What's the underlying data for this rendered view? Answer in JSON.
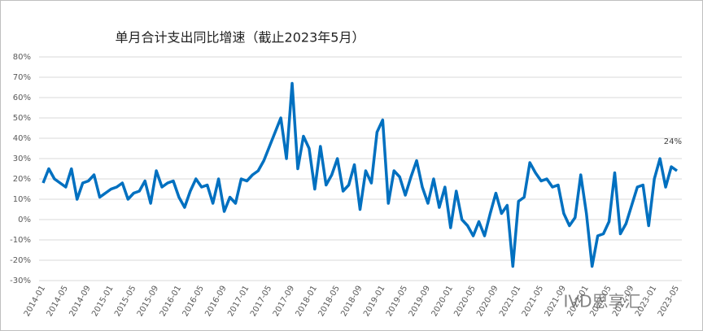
{
  "chart_data": {
    "type": "line",
    "title": "单月合计支出同比增速（截止2023年5月）",
    "watermark": "IVD思享汇",
    "categories": [
      "2014-01",
      null,
      null,
      null,
      "2014-05",
      null,
      null,
      null,
      "2014-09",
      null,
      null,
      null,
      "2015-01",
      null,
      null,
      null,
      "2015-05",
      null,
      null,
      null,
      "2015-09",
      null,
      null,
      null,
      "2016-01",
      null,
      null,
      null,
      "2016-05",
      null,
      null,
      null,
      "2016-09",
      null,
      null,
      null,
      "2017-01",
      null,
      null,
      null,
      "2017-05",
      null,
      null,
      null,
      "2017-09",
      null,
      null,
      null,
      "2018-01",
      null,
      null,
      null,
      "2018-05",
      null,
      null,
      null,
      "2018-09",
      null,
      null,
      null,
      "2019-01",
      null,
      null,
      null,
      "2019-05",
      null,
      null,
      null,
      "2019-09",
      null,
      null,
      null,
      "2020-01",
      null,
      null,
      null,
      "2020-05",
      null,
      null,
      null,
      "2020-09",
      null,
      null,
      null,
      "2021-01",
      null,
      null,
      null,
      "2021-05",
      null,
      null,
      null,
      "2021-09",
      null,
      null,
      null,
      "2022-01",
      null,
      null,
      null,
      "2022-05",
      null,
      null,
      null,
      "2022-09",
      null,
      null,
      null,
      "2023-01",
      null,
      null,
      null,
      "2023-05"
    ],
    "values": [
      18,
      25,
      20,
      18,
      16,
      25,
      10,
      18,
      19,
      22,
      11,
      13,
      15,
      16,
      18,
      10,
      13,
      14,
      19,
      8,
      24,
      16,
      18,
      19,
      11,
      6,
      14,
      20,
      16,
      17,
      8,
      20,
      4,
      11,
      8,
      20,
      19,
      22,
      24,
      29,
      36,
      43,
      50,
      30,
      67,
      25,
      41,
      35,
      15,
      36,
      17,
      22,
      30,
      14,
      17,
      27,
      5,
      24,
      18,
      43,
      49,
      8,
      24,
      21,
      12,
      21,
      29,
      16,
      8,
      20,
      6,
      16,
      -4,
      14,
      0,
      -3,
      -8,
      -1,
      -8,
      3,
      13,
      3,
      7,
      -23,
      9,
      11,
      28,
      23,
      19,
      20,
      16,
      17,
      3,
      -3,
      1,
      22,
      3,
      -23,
      -8,
      -7,
      -1,
      23,
      -7,
      -2,
      7,
      16,
      17,
      -3,
      20,
      30,
      16,
      26,
      24
    ],
    "value_labels": [
      null,
      null,
      null,
      null,
      null,
      null,
      null,
      null,
      null,
      null,
      null,
      null,
      null,
      null,
      null,
      null,
      null,
      null,
      null,
      null,
      null,
      null,
      null,
      null,
      null,
      null,
      null,
      null,
      null,
      null,
      null,
      null,
      null,
      null,
      null,
      null,
      null,
      null,
      null,
      null,
      null,
      null,
      null,
      null,
      null,
      null,
      null,
      null,
      null,
      null,
      null,
      null,
      null,
      null,
      null,
      null,
      null,
      null,
      null,
      null,
      null,
      null,
      null,
      null,
      null,
      null,
      null,
      null,
      null,
      null,
      null,
      null,
      null,
      null,
      null,
      null,
      null,
      null,
      null,
      null,
      null,
      null,
      null,
      null,
      null,
      null,
      null,
      null,
      null,
      null,
      null,
      null,
      null,
      null,
      null,
      null,
      null,
      null,
      null,
      null,
      null,
      null,
      null,
      null,
      null,
      null,
      null,
      null,
      null,
      null,
      null,
      null,
      "24%"
    ],
    "color": "#0070c0",
    "ylim": [
      -30,
      80
    ],
    "yticks": [
      {
        "value": -30,
        "label": "-30%"
      },
      {
        "value": -20,
        "label": "-20%"
      },
      {
        "value": -10,
        "label": "-10%"
      },
      {
        "value": 0,
        "label": "0%"
      },
      {
        "value": 10,
        "label": "10%"
      },
      {
        "value": 20,
        "label": "20%"
      },
      {
        "value": 30,
        "label": "30%"
      },
      {
        "value": 40,
        "label": "40%"
      },
      {
        "value": 50,
        "label": "50%"
      },
      {
        "value": 60,
        "label": "60%"
      },
      {
        "value": 70,
        "label": "70%"
      },
      {
        "value": 80,
        "label": "80%"
      }
    ],
    "grid": true
  }
}
